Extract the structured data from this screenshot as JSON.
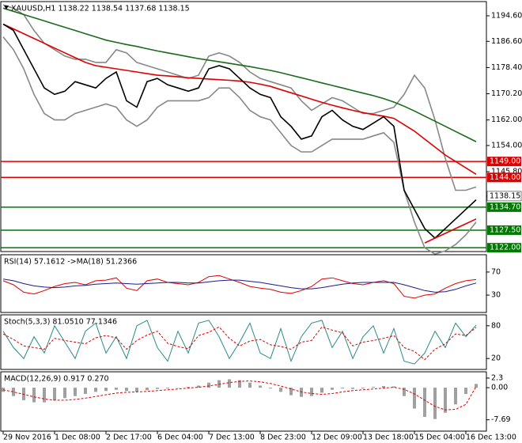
{
  "chart_data": [
    {
      "type": "line",
      "title": "XAUUSD,H1  1138.22 1138.54 1137.68 1138.15",
      "categories": [
        "29 Nov 2016",
        null,
        null,
        null,
        null,
        "1 Dec 08:00",
        null,
        null,
        null,
        null,
        "2 Dec 17:00",
        null,
        null,
        null,
        null,
        "6 Dec 04:00",
        null,
        null,
        null,
        null,
        "7 Dec 13:00",
        null,
        null,
        null,
        null,
        "8 Dec 23:00",
        null,
        null,
        null,
        null,
        "12 Dec 09:00",
        null,
        null,
        null,
        null,
        "13 Dec 18:00",
        null,
        null,
        null,
        null,
        "15 Dec 04:00",
        null,
        null,
        null,
        null,
        "16 Dec 13:00",
        null
      ],
      "ylim": [
        1120.8,
        1199.05
      ],
      "yticks": [
        {
          "value": 1194.6,
          "label": "1194.60"
        },
        {
          "value": 1186.6,
          "label": "1186.60"
        },
        {
          "value": 1178.4,
          "label": "1178.40"
        },
        {
          "value": 1170.2,
          "label": "1170.20"
        },
        {
          "value": 1162,
          "label": "1162.00"
        },
        {
          "value": 1154,
          "label": "1154.00"
        },
        {
          "value": 1145.8,
          "label": "1145.80"
        }
      ],
      "levels": [
        {
          "value": 1149,
          "label": "1149.00",
          "color": "#e00000"
        },
        {
          "value": 1144,
          "label": "1144.00",
          "color": "#e00000"
        },
        {
          "value": 1134.7,
          "label": "1134.70",
          "color": "#007a00"
        },
        {
          "value": 1127.5,
          "label": "1127.50",
          "color": "#007a00"
        },
        {
          "value": 1122,
          "label": "1122.00",
          "color": "#007a00"
        }
      ],
      "current_price": 1138.15,
      "series": [
        {
          "color": "#888888",
          "values": [
            1198,
            1197,
            1195,
            1190,
            1186,
            1184,
            1182,
            1181,
            1181,
            1180,
            1180,
            1184,
            1183,
            1180,
            1179,
            1178,
            1177,
            1176,
            1175,
            1176,
            1182,
            1183,
            1182,
            1180,
            1177,
            1175,
            1174,
            1173,
            1172,
            1168,
            1165,
            1167,
            1169,
            1168,
            1166,
            1164,
            1164,
            1165,
            1166,
            1170,
            1176,
            1172,
            1162,
            1150,
            1140,
            1140,
            1141
          ]
        },
        {
          "color": "#888888",
          "values": [
            1188,
            1184,
            1178,
            1170,
            1164,
            1162,
            1162,
            1164,
            1165,
            1166,
            1167,
            1166,
            1162,
            1160,
            1162,
            1166,
            1168,
            1168,
            1168,
            1168,
            1169,
            1172,
            1172,
            1169,
            1165,
            1163,
            1162,
            1158,
            1154,
            1152,
            1152,
            1154,
            1156,
            1156,
            1156,
            1156,
            1157,
            1158,
            1155,
            1140,
            1130,
            1122,
            1120,
            1121,
            1123,
            1126,
            1130
          ]
        },
        {
          "color": "#1a6b1a",
          "values": [
            1197,
            1196,
            1195,
            1194,
            1193,
            1192,
            1191,
            1190,
            1189,
            1188,
            1187,
            1186.3,
            1185.6,
            1185,
            1184.3,
            1183.6,
            1183,
            1182.4,
            1181.8,
            1181.2,
            1180.7,
            1180.2,
            1179.7,
            1179.2,
            1178.7,
            1178.1,
            1177.5,
            1176.8,
            1176,
            1175.2,
            1174.4,
            1173.6,
            1172.8,
            1172,
            1171.2,
            1170.4,
            1169.6,
            1168.7,
            1167.6,
            1166.3,
            1164.8,
            1163.2,
            1161.6,
            1160,
            1158.4,
            1156.8,
            1155.2
          ]
        },
        {
          "color": "#e00000",
          "values": [
            1192,
            1190.5,
            1189,
            1187.5,
            1186,
            1184.5,
            1183,
            1181.5,
            1180,
            1179,
            1178.5,
            1178,
            1177.5,
            1177,
            1176.5,
            1176,
            1175.8,
            1175.5,
            1175.2,
            1175,
            1174.8,
            1174.6,
            1174.4,
            1174.2,
            1173.8,
            1173.2,
            1172.5,
            1171.5,
            1170.5,
            1169.5,
            1168.5,
            1167.5,
            1166.6,
            1165.8,
            1165,
            1164.3,
            1163.7,
            1163.2,
            1162.5,
            1160.5,
            1158.5,
            1156,
            1153.5,
            1151,
            1149,
            1147,
            1145
          ]
        },
        {
          "color": "#000000",
          "values": [
            1192,
            1190,
            1184,
            1178,
            1172,
            1170,
            1171,
            1174,
            1173,
            1172,
            1175,
            1177,
            1168,
            1166,
            1174,
            1175,
            1173,
            1172,
            1171,
            1172,
            1178,
            1179,
            1178,
            1175,
            1172,
            1170,
            1169,
            1163,
            1160,
            1156,
            1157,
            1163,
            1165,
            1162,
            1160,
            1159,
            1161,
            1163,
            1160,
            1140,
            1134,
            1128,
            1125,
            1128,
            1131,
            1134,
            1137
          ]
        },
        {
          "color": "#e00000",
          "values": [
            null,
            null,
            null,
            null,
            null,
            null,
            null,
            null,
            null,
            null,
            null,
            null,
            null,
            null,
            null,
            null,
            null,
            null,
            null,
            null,
            null,
            null,
            null,
            null,
            null,
            null,
            null,
            null,
            null,
            null,
            null,
            null,
            null,
            null,
            null,
            null,
            null,
            null,
            null,
            null,
            null,
            1123.5,
            1125,
            1126.5,
            1128,
            1129.5,
            1131
          ]
        }
      ]
    },
    {
      "type": "line",
      "title": "RSI(14) 57.1612 ->MA(18) 51.2366",
      "ylim": [
        0,
        100
      ],
      "yticks": [
        70,
        30
      ],
      "series": [
        {
          "color": "#e00000",
          "values": [
            55,
            48,
            35,
            32,
            38,
            45,
            50,
            52,
            48,
            55,
            56,
            60,
            42,
            38,
            55,
            58,
            52,
            50,
            48,
            52,
            62,
            64,
            58,
            52,
            45,
            42,
            40,
            35,
            33,
            38,
            45,
            58,
            60,
            55,
            50,
            48,
            52,
            55,
            50,
            28,
            25,
            30,
            32,
            42,
            50,
            55,
            57
          ]
        },
        {
          "color": "#1a1a8c",
          "values": [
            58,
            55,
            50,
            46,
            44,
            43,
            44,
            46,
            47,
            49,
            50,
            51,
            50,
            49,
            50,
            51,
            52,
            52,
            51,
            51,
            53,
            55,
            56,
            56,
            54,
            52,
            49,
            46,
            43,
            41,
            41,
            43,
            46,
            49,
            51,
            52,
            52,
            52,
            52,
            48,
            43,
            38,
            35,
            36,
            40,
            46,
            51
          ]
        }
      ]
    },
    {
      "type": "line",
      "title": "Stoch(5,3,3) 81.0510 77.1346",
      "ylim": [
        0,
        100
      ],
      "yticks": [
        80,
        20
      ],
      "series": [
        {
          "color": "#2a8a8a",
          "values": [
            70,
            40,
            20,
            60,
            30,
            80,
            50,
            20,
            70,
            85,
            30,
            60,
            20,
            80,
            90,
            40,
            15,
            70,
            30,
            85,
            90,
            60,
            20,
            50,
            85,
            30,
            20,
            75,
            15,
            60,
            85,
            90,
            40,
            70,
            20,
            60,
            80,
            30,
            75,
            15,
            10,
            30,
            70,
            40,
            85,
            60,
            81
          ]
        },
        {
          "color": "#e00000",
          "dash": true,
          "values": [
            65,
            55,
            43,
            40,
            37,
            57,
            53,
            50,
            47,
            58,
            62,
            58,
            37,
            53,
            63,
            70,
            48,
            42,
            38,
            62,
            68,
            78,
            57,
            43,
            52,
            55,
            45,
            42,
            37,
            50,
            53,
            78,
            72,
            67,
            43,
            50,
            53,
            57,
            62,
            40,
            33,
            18,
            37,
            47,
            65,
            62,
            77
          ]
        }
      ]
    },
    {
      "type": "bar",
      "title": "MACD(12,26,9) 0.917 0.270",
      "ylim": [
        -10.4,
        3.8
      ],
      "yticks": [
        2.3,
        {
          "value": 0,
          "label": "0.00"
        },
        -7.69
      ],
      "series": [
        {
          "type": "bar",
          "color": "#a0a0a0",
          "values": [
            -1,
            -2,
            -3,
            -3.5,
            -3.5,
            -3,
            -2.5,
            -2,
            -1.5,
            -1,
            -0.8,
            -0.5,
            -0.8,
            -1,
            -0.6,
            -0.3,
            -0.2,
            0,
            0.2,
            0.5,
            1.2,
            1.8,
            2,
            1.8,
            1.2,
            0.5,
            -0.2,
            -1,
            -1.8,
            -2.2,
            -2,
            -1.2,
            -0.5,
            -0.2,
            -0.3,
            -0.2,
            0.2,
            0.4,
            0.3,
            -2,
            -5,
            -7,
            -7.5,
            -6,
            -4,
            -1.5,
            0.9
          ]
        },
        {
          "type": "line",
          "color": "#e00000",
          "dash": true,
          "values": [
            -0.5,
            -1,
            -1.6,
            -2.2,
            -2.7,
            -3,
            -3,
            -2.8,
            -2.5,
            -2.1,
            -1.7,
            -1.3,
            -1.1,
            -1,
            -0.9,
            -0.7,
            -0.5,
            -0.3,
            -0.1,
            0.1,
            0.4,
            0.8,
            1.2,
            1.5,
            1.6,
            1.4,
            1,
            0.4,
            -0.3,
            -1,
            -1.4,
            -1.6,
            -1.4,
            -1,
            -0.7,
            -0.5,
            -0.3,
            -0.1,
            0.1,
            -0.4,
            -1.5,
            -3,
            -4.5,
            -5.3,
            -5.2,
            -4,
            0.27
          ]
        }
      ]
    }
  ]
}
